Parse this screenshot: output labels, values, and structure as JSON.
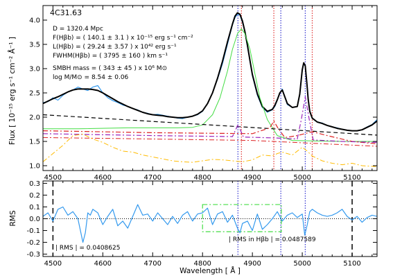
{
  "chart_data": [
    {
      "type": "line",
      "panel": "top",
      "object_name": "4C31.63",
      "ylabel": "Flux [ 10⁻¹⁵ erg s⁻¹ cm⁻² Å⁻¹ ]",
      "xlim": [
        4480,
        5150
      ],
      "ylim": [
        0.9,
        4.3
      ],
      "x_ticks": [
        4500,
        4600,
        4700,
        4800,
        4900,
        5000,
        5100
      ],
      "y_ticks": [
        1.0,
        1.5,
        2.0,
        2.5,
        3.0,
        3.5,
        4.0
      ],
      "y_tick_labels": [
        "1.0",
        "1.5",
        "2.0",
        "2.5",
        "3.0",
        "3.5",
        "4.0"
      ],
      "annotations": [
        "D = 1320.4 Mpc",
        "F(Hβb) = (  140.1 ±   3.1 ) x 10⁻¹⁵ erg s⁻¹ cm⁻²",
        "L(Hβb) = (  29.24 ±  3.57 ) x 10⁴² erg s⁻¹",
        "FWHM(Hβb) = (  3795 ±   160 ) km s⁻¹",
        "SMBH mass = (   343 ±    45 ) x 10⁶ M⊙",
        "log M/M⊙ =   8.54 ±  0.06"
      ],
      "vlines": [
        {
          "x": 4871,
          "color": "#3030d0"
        },
        {
          "x": 4878,
          "color": "#e03030"
        },
        {
          "x": 4943,
          "color": "#e03030"
        },
        {
          "x": 4957,
          "color": "#3030d0"
        },
        {
          "x": 5006,
          "color": "#3030d0"
        },
        {
          "x": 5020,
          "color": "#e03030"
        }
      ],
      "series": [
        {
          "color": "#3399ee",
          "style": "solid",
          "width": 1.2,
          "x": [
            4480,
            4490,
            4500,
            4510,
            4520,
            4530,
            4540,
            4550,
            4560,
            4570,
            4580,
            4590,
            4600,
            4610,
            4620,
            4630,
            4640,
            4650,
            4660,
            4670,
            4680,
            4690,
            4700,
            4710,
            4720,
            4730,
            4740,
            4750,
            4760,
            4770,
            4780,
            4790,
            4800,
            4810,
            4820,
            4830,
            4840,
            4850,
            4860,
            4865,
            4870,
            4875,
            4880,
            4885,
            4890,
            4895,
            4900,
            4910,
            4920,
            4930,
            4940,
            4945,
            4950,
            4955,
            4960,
            4965,
            4970,
            4980,
            4990,
            4995,
            5000,
            5003,
            5006,
            5009,
            5012,
            5015,
            5020,
            5030,
            5040,
            5050,
            5060,
            5070,
            5080,
            5090,
            5100,
            5110,
            5120,
            5130,
            5140,
            5150
          ],
          "y": [
            2.3,
            2.32,
            2.4,
            2.35,
            2.45,
            2.52,
            2.56,
            2.62,
            2.58,
            2.55,
            2.62,
            2.65,
            2.5,
            2.4,
            2.34,
            2.3,
            2.25,
            2.22,
            2.18,
            2.15,
            2.1,
            2.08,
            2.05,
            2.06,
            2.04,
            2.02,
            2.0,
            1.98,
            1.97,
            2.0,
            2.02,
            2.05,
            2.12,
            2.28,
            2.5,
            2.78,
            3.1,
            3.5,
            3.9,
            4.05,
            4.12,
            4.1,
            3.95,
            3.75,
            3.45,
            3.15,
            2.85,
            2.45,
            2.2,
            2.1,
            2.15,
            2.22,
            2.35,
            2.5,
            2.58,
            2.42,
            2.26,
            2.2,
            2.22,
            2.45,
            2.95,
            3.1,
            3.05,
            2.7,
            2.35,
            2.12,
            1.98,
            1.9,
            1.88,
            1.83,
            1.8,
            1.78,
            1.75,
            1.73,
            1.72,
            1.72,
            1.74,
            1.8,
            1.85,
            1.95
          ]
        },
        {
          "color": "#000000",
          "style": "solid",
          "width": 2,
          "x": [
            4480,
            4490,
            4500,
            4510,
            4520,
            4530,
            4540,
            4550,
            4560,
            4570,
            4580,
            4590,
            4600,
            4610,
            4620,
            4630,
            4640,
            4650,
            4660,
            4670,
            4680,
            4690,
            4700,
            4710,
            4720,
            4730,
            4740,
            4750,
            4760,
            4770,
            4780,
            4790,
            4800,
            4810,
            4820,
            4830,
            4840,
            4850,
            4860,
            4865,
            4870,
            4875,
            4880,
            4885,
            4890,
            4895,
            4900,
            4910,
            4920,
            4930,
            4940,
            4945,
            4950,
            4955,
            4960,
            4965,
            4970,
            4980,
            4990,
            4995,
            5000,
            5003,
            5006,
            5009,
            5012,
            5015,
            5020,
            5030,
            5040,
            5050,
            5060,
            5070,
            5080,
            5090,
            5100,
            5110,
            5120,
            5130,
            5140,
            5150
          ],
          "y": [
            2.28,
            2.33,
            2.38,
            2.42,
            2.47,
            2.52,
            2.56,
            2.58,
            2.58,
            2.58,
            2.57,
            2.55,
            2.5,
            2.44,
            2.38,
            2.32,
            2.27,
            2.22,
            2.18,
            2.14,
            2.1,
            2.07,
            2.05,
            2.04,
            2.03,
            2.01,
            2.0,
            1.99,
            1.99,
            2.0,
            2.02,
            2.06,
            2.13,
            2.28,
            2.5,
            2.8,
            3.15,
            3.55,
            3.92,
            4.08,
            4.15,
            4.12,
            3.98,
            3.76,
            3.48,
            3.17,
            2.88,
            2.48,
            2.22,
            2.12,
            2.16,
            2.24,
            2.36,
            2.5,
            2.56,
            2.42,
            2.28,
            2.2,
            2.22,
            2.48,
            2.98,
            3.12,
            3.06,
            2.72,
            2.36,
            2.12,
            1.98,
            1.9,
            1.87,
            1.83,
            1.8,
            1.77,
            1.75,
            1.73,
            1.72,
            1.72,
            1.74,
            1.79,
            1.84,
            1.92
          ]
        },
        {
          "color": "#44dd44",
          "style": "solid",
          "width": 1,
          "x": [
            4480,
            4550,
            4650,
            4750,
            4780,
            4800,
            4820,
            4835,
            4850,
            4860,
            4870,
            4878,
            4885,
            4895,
            4905,
            4915,
            4930,
            4950,
            4980,
            5020,
            5080,
            5150
          ],
          "y": [
            1.76,
            1.76,
            1.78,
            1.78,
            1.79,
            1.84,
            2.05,
            2.4,
            2.95,
            3.4,
            3.72,
            3.82,
            3.72,
            3.4,
            2.9,
            2.4,
            1.95,
            1.62,
            1.52,
            1.51,
            1.5,
            1.5
          ]
        },
        {
          "color": "#000000",
          "style": "dash",
          "width": 1.2,
          "x": [
            4480,
            5150
          ],
          "y": [
            2.05,
            1.63
          ]
        },
        {
          "color": "#dd2222",
          "style": "dashdot",
          "width": 1.2,
          "x": [
            4480,
            4700,
            4900,
            4935,
            4943,
            4951,
            4965,
            4990,
            5020,
            5050,
            5100,
            5150
          ],
          "y": [
            1.72,
            1.68,
            1.66,
            1.78,
            1.92,
            1.78,
            1.58,
            1.62,
            1.7,
            1.62,
            1.5,
            1.45
          ]
        },
        {
          "color": "#9922bb",
          "style": "dashdot",
          "width": 1.2,
          "x": [
            4480,
            4700,
            4860,
            4866,
            4871,
            4876,
            4882,
            4950,
            4990,
            4998,
            5006,
            5014,
            5022,
            5080,
            5150
          ],
          "y": [
            1.66,
            1.62,
            1.6,
            1.73,
            1.85,
            1.73,
            1.59,
            1.57,
            1.55,
            1.95,
            2.42,
            1.95,
            1.53,
            1.5,
            1.48
          ]
        },
        {
          "color": "#dd2222",
          "style": "dashdot",
          "width": 1,
          "x": [
            4480,
            4700,
            4900,
            5150
          ],
          "y": [
            1.58,
            1.55,
            1.52,
            1.4
          ]
        },
        {
          "color": "#ffbb00",
          "style": "dashdot",
          "width": 1,
          "x": [
            4480,
            4500,
            4520,
            4540,
            4560,
            4580,
            4600,
            4620,
            4640,
            4660,
            4680,
            4700,
            4720,
            4740,
            4760,
            4780,
            4800,
            4820,
            4840,
            4860,
            4880,
            4900,
            4920,
            4940,
            4950,
            4960,
            4980,
            5000,
            5010,
            5020,
            5040,
            5060,
            5080,
            5100,
            5120,
            5150
          ],
          "y": [
            1.08,
            1.25,
            1.42,
            1.62,
            1.65,
            1.55,
            1.48,
            1.38,
            1.3,
            1.28,
            1.22,
            1.18,
            1.14,
            1.1,
            1.08,
            1.07,
            1.1,
            1.13,
            1.12,
            1.1,
            1.08,
            1.12,
            1.22,
            1.2,
            1.25,
            1.28,
            1.22,
            1.38,
            1.3,
            1.2,
            1.1,
            1.05,
            1.02,
            1.05,
            1.0,
            0.98
          ]
        }
      ]
    },
    {
      "type": "line",
      "panel": "bottom",
      "xlabel": "Wavelength [ Å ]",
      "ylabel": "RMS",
      "xlim": [
        4480,
        5150
      ],
      "ylim": [
        -0.32,
        0.32
      ],
      "x_ticks": [
        4500,
        4600,
        4700,
        4800,
        4900,
        5000,
        5100
      ],
      "y_ticks": [
        -0.3,
        -0.2,
        -0.1,
        0.0,
        0.1,
        0.2,
        0.3
      ],
      "y_tick_labels": [
        "-0.3",
        "-0.2",
        "-0.1",
        "0.0",
        "0.1",
        "0.2",
        "0.3"
      ],
      "rms_label": "| RMS | =  0.0408625",
      "rms_hb_label": "| RMS in Hβb | =  0.0487589",
      "black_vlines": [
        4500,
        5100
      ],
      "vlines": [
        {
          "x": 4871,
          "color": "#3030d0"
        },
        {
          "x": 4957,
          "color": "#3030d0"
        },
        {
          "x": 5006,
          "color": "#3030d0"
        }
      ],
      "box": {
        "x": [
          4800,
          4958
        ],
        "y": [
          -0.11,
          0.12
        ],
        "color": "#44dd44"
      },
      "series": [
        {
          "color": "#3399ee",
          "style": "solid",
          "width": 1.2,
          "x": [
            4480,
            4490,
            4500,
            4510,
            4520,
            4530,
            4540,
            4550,
            4555,
            4560,
            4565,
            4570,
            4575,
            4580,
            4590,
            4600,
            4610,
            4620,
            4630,
            4640,
            4650,
            4660,
            4670,
            4680,
            4690,
            4700,
            4710,
            4720,
            4730,
            4740,
            4750,
            4760,
            4770,
            4780,
            4790,
            4800,
            4810,
            4820,
            4830,
            4840,
            4850,
            4860,
            4870,
            4875,
            4880,
            4890,
            4900,
            4910,
            4920,
            4930,
            4940,
            4950,
            4960,
            4970,
            4980,
            4990,
            5000,
            5005,
            5010,
            5015,
            5020,
            5030,
            5040,
            5050,
            5060,
            5070,
            5080,
            5090,
            5100,
            5110,
            5120,
            5130,
            5140,
            5150
          ],
          "y": [
            0.02,
            0.05,
            -0.02,
            0.08,
            0.1,
            0.03,
            0.06,
            0.0,
            -0.1,
            -0.2,
            -0.12,
            0.05,
            0.03,
            0.08,
            0.05,
            -0.05,
            0.02,
            0.08,
            -0.06,
            -0.02,
            -0.08,
            0.02,
            0.12,
            0.03,
            0.04,
            -0.02,
            0.05,
            0.0,
            -0.05,
            0.02,
            -0.04,
            0.03,
            0.06,
            -0.02,
            0.04,
            0.05,
            0.09,
            -0.05,
            0.04,
            0.06,
            -0.03,
            0.03,
            -0.08,
            -0.12,
            -0.04,
            -0.02,
            -0.1,
            0.04,
            -0.09,
            -0.05,
            0.0,
            0.06,
            -0.02,
            0.03,
            0.05,
            0.01,
            0.04,
            -0.14,
            -0.05,
            0.06,
            0.08,
            0.05,
            0.03,
            0.02,
            0.03,
            0.05,
            0.08,
            0.02,
            -0.01,
            0.02,
            -0.03,
            0.01,
            0.03,
            0.02
          ]
        }
      ]
    }
  ]
}
